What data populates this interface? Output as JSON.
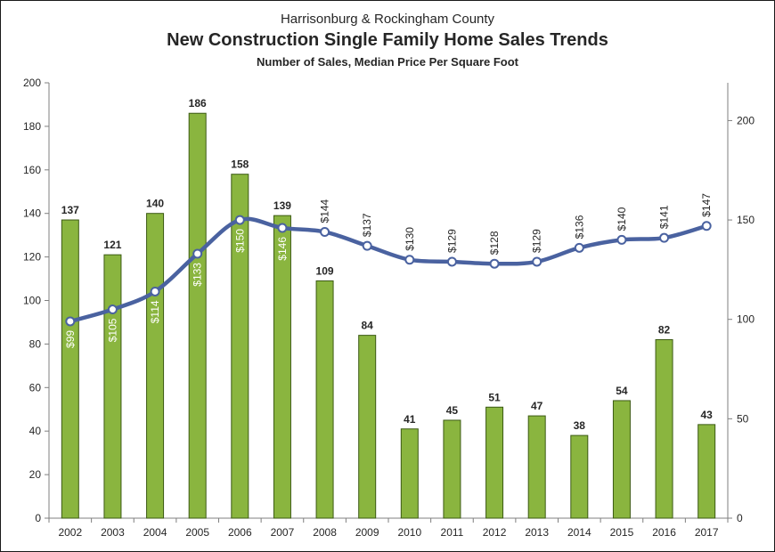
{
  "header": {
    "supertitle": "Harrisonburg & Rockingham County",
    "title": "New Construction Single Family Home Sales Trends",
    "subtitle": "Number of Sales, Median Price Per Square Foot"
  },
  "colors": {
    "bar_fill": "#8AB53F",
    "bar_stroke": "#3C5A14",
    "line": "#4A62A0",
    "marker_fill": "#ffffff",
    "text": "#262626",
    "axis": "#7f7f7f"
  },
  "chart_data": {
    "type": "bar+line",
    "categories": [
      "2002",
      "2003",
      "2004",
      "2005",
      "2006",
      "2007",
      "2008",
      "2009",
      "2010",
      "2011",
      "2012",
      "2013",
      "2014",
      "2015",
      "2016",
      "2017"
    ],
    "series": [
      {
        "type": "bar",
        "axis": "left",
        "values": [
          137,
          121,
          140,
          186,
          158,
          139,
          109,
          84,
          41,
          45,
          51,
          47,
          38,
          54,
          82,
          43
        ],
        "labels": [
          "137",
          "121",
          "140",
          "186",
          "158",
          "139",
          "109",
          "84",
          "41",
          "45",
          "51",
          "47",
          "38",
          "54",
          "82",
          "43"
        ]
      },
      {
        "type": "line",
        "axis": "right",
        "smooth": true,
        "values": [
          99,
          105,
          114,
          133,
          150,
          146,
          144,
          137,
          130,
          129,
          128,
          129,
          136,
          140,
          141,
          147
        ],
        "labels": [
          "$99",
          "$105",
          "$114",
          "$133",
          "$150",
          "$146",
          "$144",
          "$137",
          "$130",
          "$129",
          "$128",
          "$129",
          "$136",
          "$140",
          "$141",
          "$147"
        ]
      }
    ],
    "y_left": {
      "min": 0,
      "max": 200,
      "ticks": [
        "0",
        "20",
        "40",
        "60",
        "80",
        "100",
        "120",
        "140",
        "160",
        "180",
        "200"
      ]
    },
    "y_right": {
      "min": 0,
      "max": 219,
      "ticks": [
        "0",
        "50",
        "100",
        "150",
        "200"
      ]
    },
    "grid": false,
    "legend": "none"
  }
}
